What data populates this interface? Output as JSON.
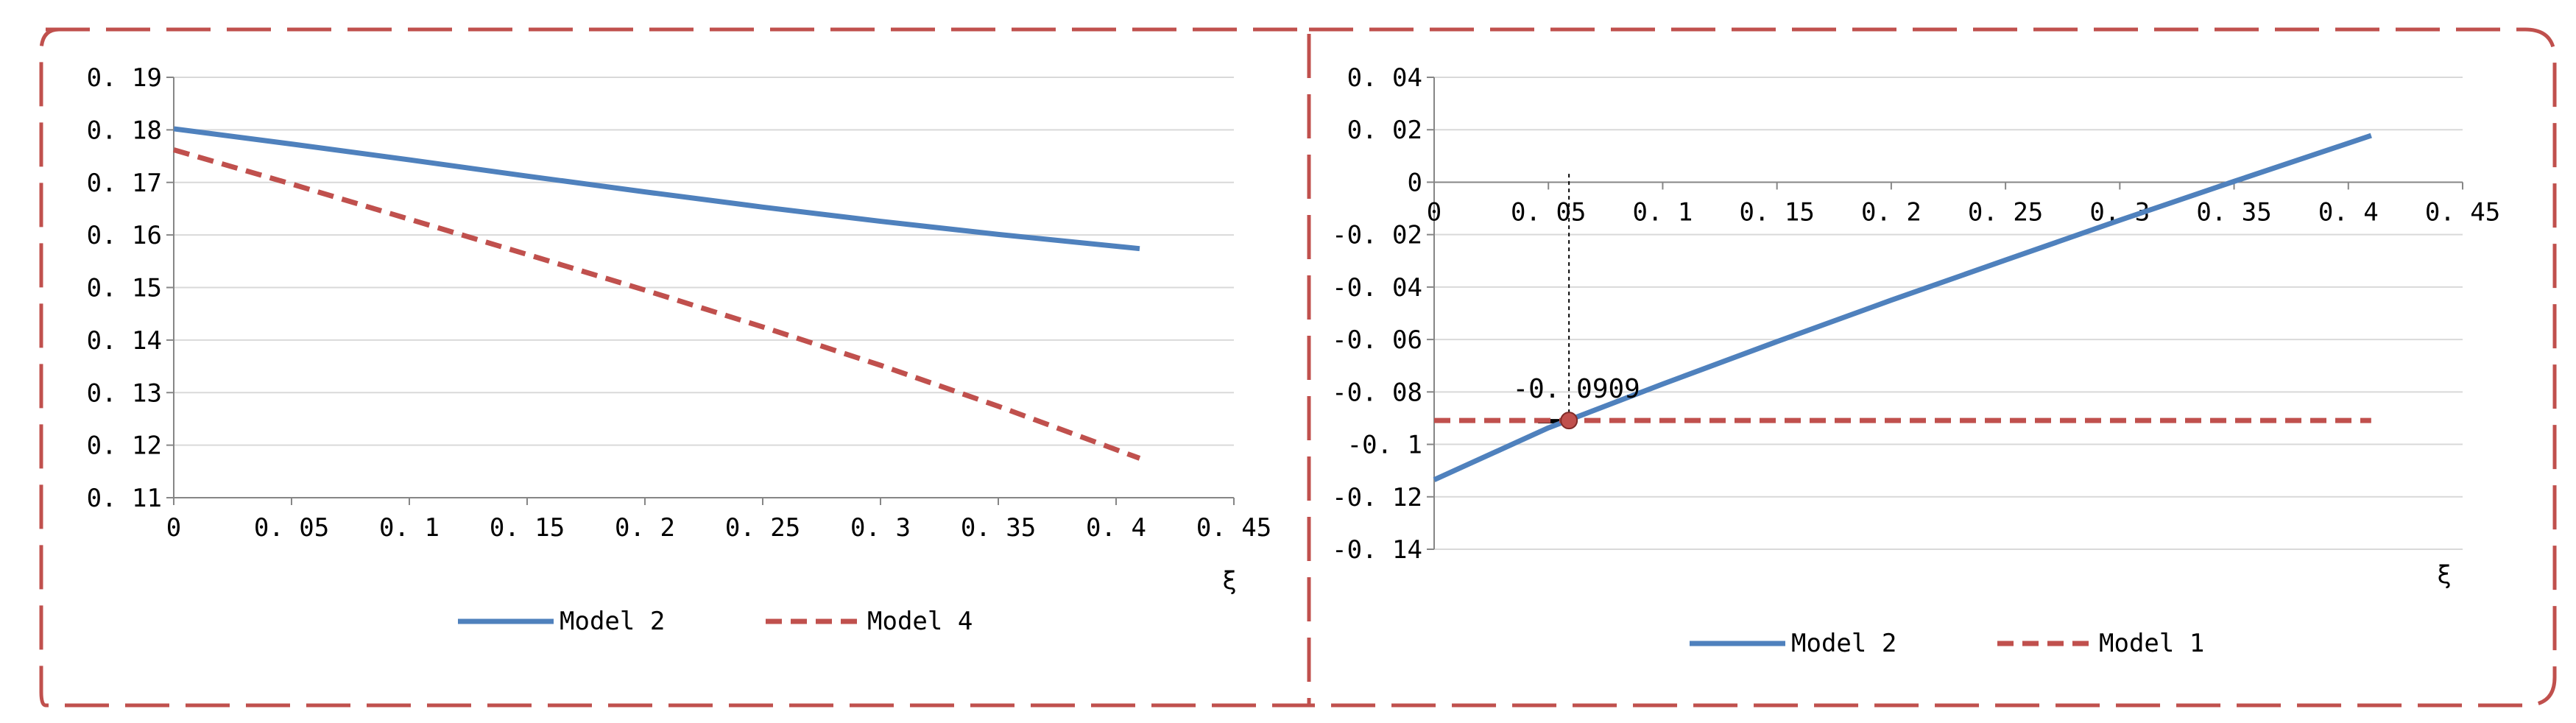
{
  "chart_data": [
    {
      "type": "line",
      "title": "",
      "xlabel": "ξ",
      "ylabel": "",
      "xlim": [
        0,
        0.45
      ],
      "ylim": [
        0.11,
        0.19
      ],
      "x_ticks": [
        0,
        0.05,
        0.1,
        0.15,
        0.2,
        0.25,
        0.3,
        0.35,
        0.4,
        0.45
      ],
      "x_tick_labels": [
        "0",
        "0. 05",
        "0. 1",
        "0. 15",
        "0. 2",
        "0. 25",
        "0. 3",
        "0. 35",
        "0. 4",
        "0. 45"
      ],
      "y_ticks": [
        0.11,
        0.12,
        0.13,
        0.14,
        0.15,
        0.16,
        0.17,
        0.18,
        0.19
      ],
      "y_tick_labels": [
        "0. 11",
        "0. 12",
        "0. 13",
        "0. 14",
        "0. 15",
        "0. 16",
        "0. 17",
        "0. 18",
        "0. 19"
      ],
      "grid": true,
      "legend_position": "bottom",
      "series": [
        {
          "name": "Model 2",
          "color": "#4f81bd",
          "style": "solid",
          "x": [
            0,
            0.05,
            0.1,
            0.15,
            0.2,
            0.25,
            0.3,
            0.35,
            0.41
          ],
          "y": [
            0.1802,
            0.1773,
            0.1743,
            0.1712,
            0.1682,
            0.1653,
            0.1626,
            0.1601,
            0.1574
          ]
        },
        {
          "name": "Model 4",
          "color": "#c0504d",
          "style": "dashed",
          "x": [
            0,
            0.05,
            0.1,
            0.15,
            0.2,
            0.25,
            0.3,
            0.35,
            0.41
          ],
          "y": [
            0.1762,
            0.1697,
            0.163,
            0.1563,
            0.1495,
            0.1425,
            0.1352,
            0.1274,
            0.1175
          ]
        }
      ]
    },
    {
      "type": "line",
      "title": "",
      "xlabel": "ξ",
      "ylabel": "",
      "xlim": [
        0,
        0.45
      ],
      "ylim": [
        -0.14,
        0.04
      ],
      "x_ticks": [
        0,
        0.05,
        0.1,
        0.15,
        0.2,
        0.25,
        0.3,
        0.35,
        0.4,
        0.45
      ],
      "x_tick_labels": [
        "0",
        "0. 05",
        "0. 1",
        "0. 15",
        "0. 2",
        "0. 25",
        "0. 3",
        "0. 35",
        "0. 4",
        "0. 45"
      ],
      "y_ticks": [
        -0.14,
        -0.12,
        -0.1,
        -0.08,
        -0.06,
        -0.04,
        -0.02,
        0,
        0.02,
        0.04
      ],
      "y_tick_labels": [
        "-0. 14",
        "-0. 12",
        "-0. 1",
        "-0. 08",
        "-0. 06",
        "-0. 04",
        "-0. 02",
        "0",
        "0. 02",
        "0. 04"
      ],
      "grid": true,
      "legend_position": "bottom",
      "series": [
        {
          "name": "Model 2",
          "color": "#4f81bd",
          "style": "solid",
          "x": [
            0,
            0.05,
            0.1,
            0.15,
            0.2,
            0.25,
            0.3,
            0.35,
            0.41
          ],
          "y": [
            -0.1135,
            -0.0937,
            -0.077,
            -0.0608,
            -0.045,
            -0.0297,
            -0.0145,
            0.0003,
            0.0178
          ]
        },
        {
          "name": "Model 1",
          "color": "#c0504d",
          "style": "dashed",
          "x": [
            0,
            0.41
          ],
          "y": [
            -0.0909,
            -0.0909
          ]
        }
      ],
      "annotation": {
        "text": "-0. 0909",
        "x": 0.059,
        "y": -0.0909,
        "marker_color": "#c0504d"
      }
    }
  ],
  "frame_color": "#c0504d"
}
